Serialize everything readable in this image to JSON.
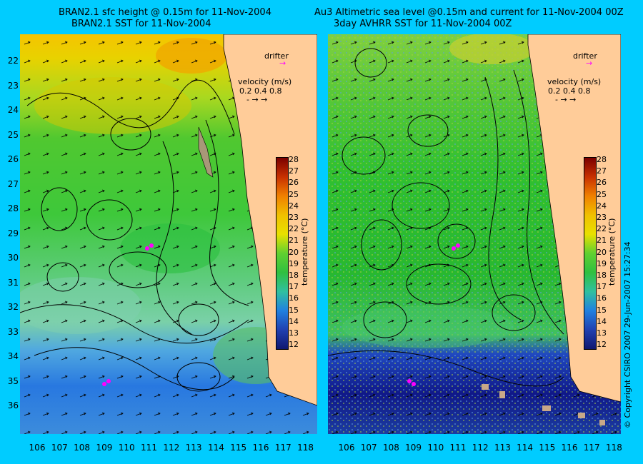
{
  "titles": {
    "left_line1": "BRAN2.1 sfc height @ 0.15m for 11-Nov-2004",
    "left_line2": "BRAN2.1 SST for 11-Nov-2004",
    "right_line1": "Au3 Altimetric sea level  @0.15m and current for 11-Nov-2004 00Z",
    "right_line2": "3day AVHRR SST for 11-Nov-2004 00Z"
  },
  "axes": {
    "lon_ticks": [
      "106",
      "107",
      "108",
      "109",
      "110",
      "111",
      "112",
      "113",
      "114",
      "115",
      "116",
      "117",
      "118"
    ],
    "lat_ticks": [
      "22",
      "23",
      "24",
      "25",
      "26",
      "27",
      "28",
      "29",
      "30",
      "31",
      "32",
      "33",
      "34",
      "35",
      "36"
    ]
  },
  "overlay": {
    "drifter_label": "drifter",
    "velocity_label": "velocity (m/s)",
    "velocity_scale": "0.2 0.4 0.8"
  },
  "colorbar": {
    "ticks": [
      "28",
      "27",
      "26",
      "25",
      "24",
      "23",
      "22",
      "21",
      "20",
      "19",
      "18",
      "17",
      "16",
      "15",
      "14",
      "13",
      "12"
    ],
    "unit": "temperature (°C)"
  },
  "copyright": "© Copyright CSIRO 2007   29-Jun-2007 15:27:34",
  "colors": {
    "background": "#00ccff",
    "land": "#ffcc99",
    "drifter": "#ff00ff"
  }
}
